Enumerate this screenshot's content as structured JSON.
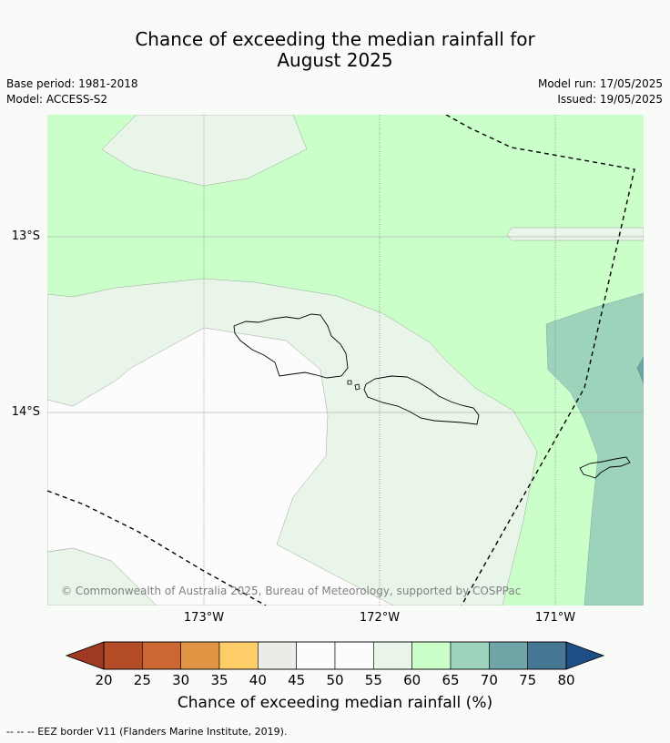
{
  "title_line1": "Chance of exceeding the median rainfall for",
  "title_line2": "August 2025",
  "meta": {
    "base_period": "Base period: 1981-2018",
    "model": "Model: ACCESS-S2",
    "model_run": "Model run: 17/05/2025",
    "issued": "Issued: 19/05/2025"
  },
  "lat_labels": [
    "13°S",
    "14°S"
  ],
  "lon_labels": [
    "173°W",
    "172°W",
    "171°W"
  ],
  "copyright": "© Commonwealth of Australia 2025, Bureau of Meteorology, supported by COSPPac",
  "colorbar": {
    "ticks": [
      "20",
      "25",
      "30",
      "35",
      "40",
      "45",
      "50",
      "55",
      "60",
      "65",
      "70",
      "75",
      "80"
    ],
    "colors": {
      "below_20": "#9e3a22",
      "20_25": "#b34c27",
      "25_30": "#cc6633",
      "30_35": "#e29544",
      "35_40": "#fecd68",
      "40_45": "#ebece6",
      "45_50": "#fbfcfb",
      "50_55": "#fbfcfb",
      "55_60": "#eaf5ea",
      "60_65": "#caffca",
      "65_70": "#9ed3bb",
      "70_75": "#70a5a8",
      "75_80": "#457795",
      "above_80": "#1d4f85"
    },
    "label": "Chance of exceeding median rainfall (%)"
  },
  "footer": "--  --  -- EEZ border V11 (Flanders Marine Institute, 2019)."
}
